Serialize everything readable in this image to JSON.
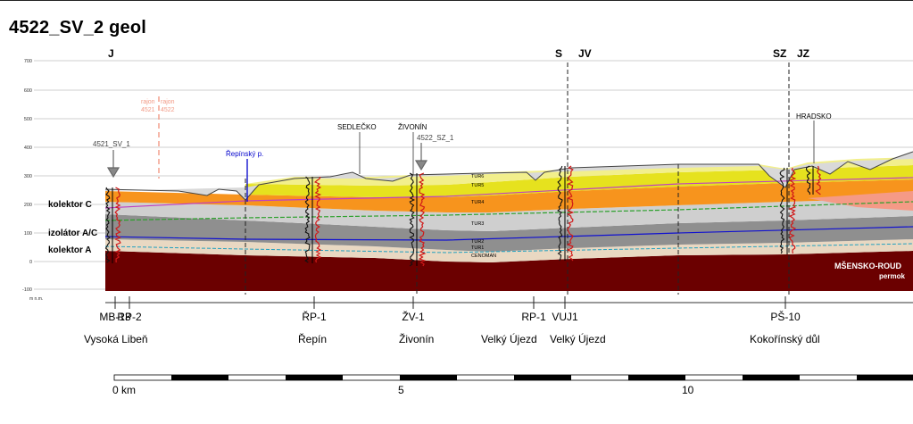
{
  "title": "4522_SV_2 geol",
  "orientation_labels": [
    "J",
    "S",
    "JV",
    "SZ",
    "JZ"
  ],
  "y_axis": {
    "ticks": [
      "700",
      "600",
      "500",
      "400",
      "300",
      "200",
      "100",
      "0",
      "-100"
    ],
    "unit": "m n.m."
  },
  "boundary": {
    "left": "rajon 4521",
    "right": "rajon 4522",
    "left_lines": [
      "rajon",
      "4521"
    ],
    "right_lines": [
      "rajon",
      "4522"
    ]
  },
  "markers": {
    "sv1": "4521_SV_1",
    "sz1": "4522_SZ_1"
  },
  "place_labels": [
    "SEDLEČKO",
    "ŽIVONÍN",
    "HRADSKO"
  ],
  "stream_label": "Řepínský p.",
  "collectors": [
    "kolektor C",
    "izolátor A/C",
    "kolektor A"
  ],
  "unit_labels": [
    "TUR6",
    "TUR5",
    "TUR4",
    "TUR3",
    "TUR2",
    "TUR1",
    "CENOMAN"
  ],
  "basement_label": [
    "MŠENSKO-ROUD",
    "permok"
  ],
  "wells": [
    {
      "code": "MB-13",
      "name": "Vysoká Libeň"
    },
    {
      "code": "RP-2",
      "name": ""
    },
    {
      "code": "ŘP-1",
      "name": "Řepín"
    },
    {
      "code": "ŽV-1",
      "name": "Živonín"
    },
    {
      "code": "RP-1",
      "name": "Velký Újezd"
    },
    {
      "code": "VUJ1",
      "name": "Velký Újezd"
    },
    {
      "code": "PŠ-10",
      "name": "Kokořínský důl"
    }
  ],
  "scale_bar": {
    "labels": [
      "0 km",
      "5",
      "10"
    ]
  },
  "colors": {
    "basement": "#6b0000",
    "orange": "#f7941d",
    "yellow": "#e8e81a",
    "light_yellow": "#f2f296",
    "salmon": "#f5a08c",
    "gray": "#c9c9c9",
    "dark_gray": "#8c8c8c",
    "stream": "#0000cc",
    "boundary": "#f29a86"
  }
}
